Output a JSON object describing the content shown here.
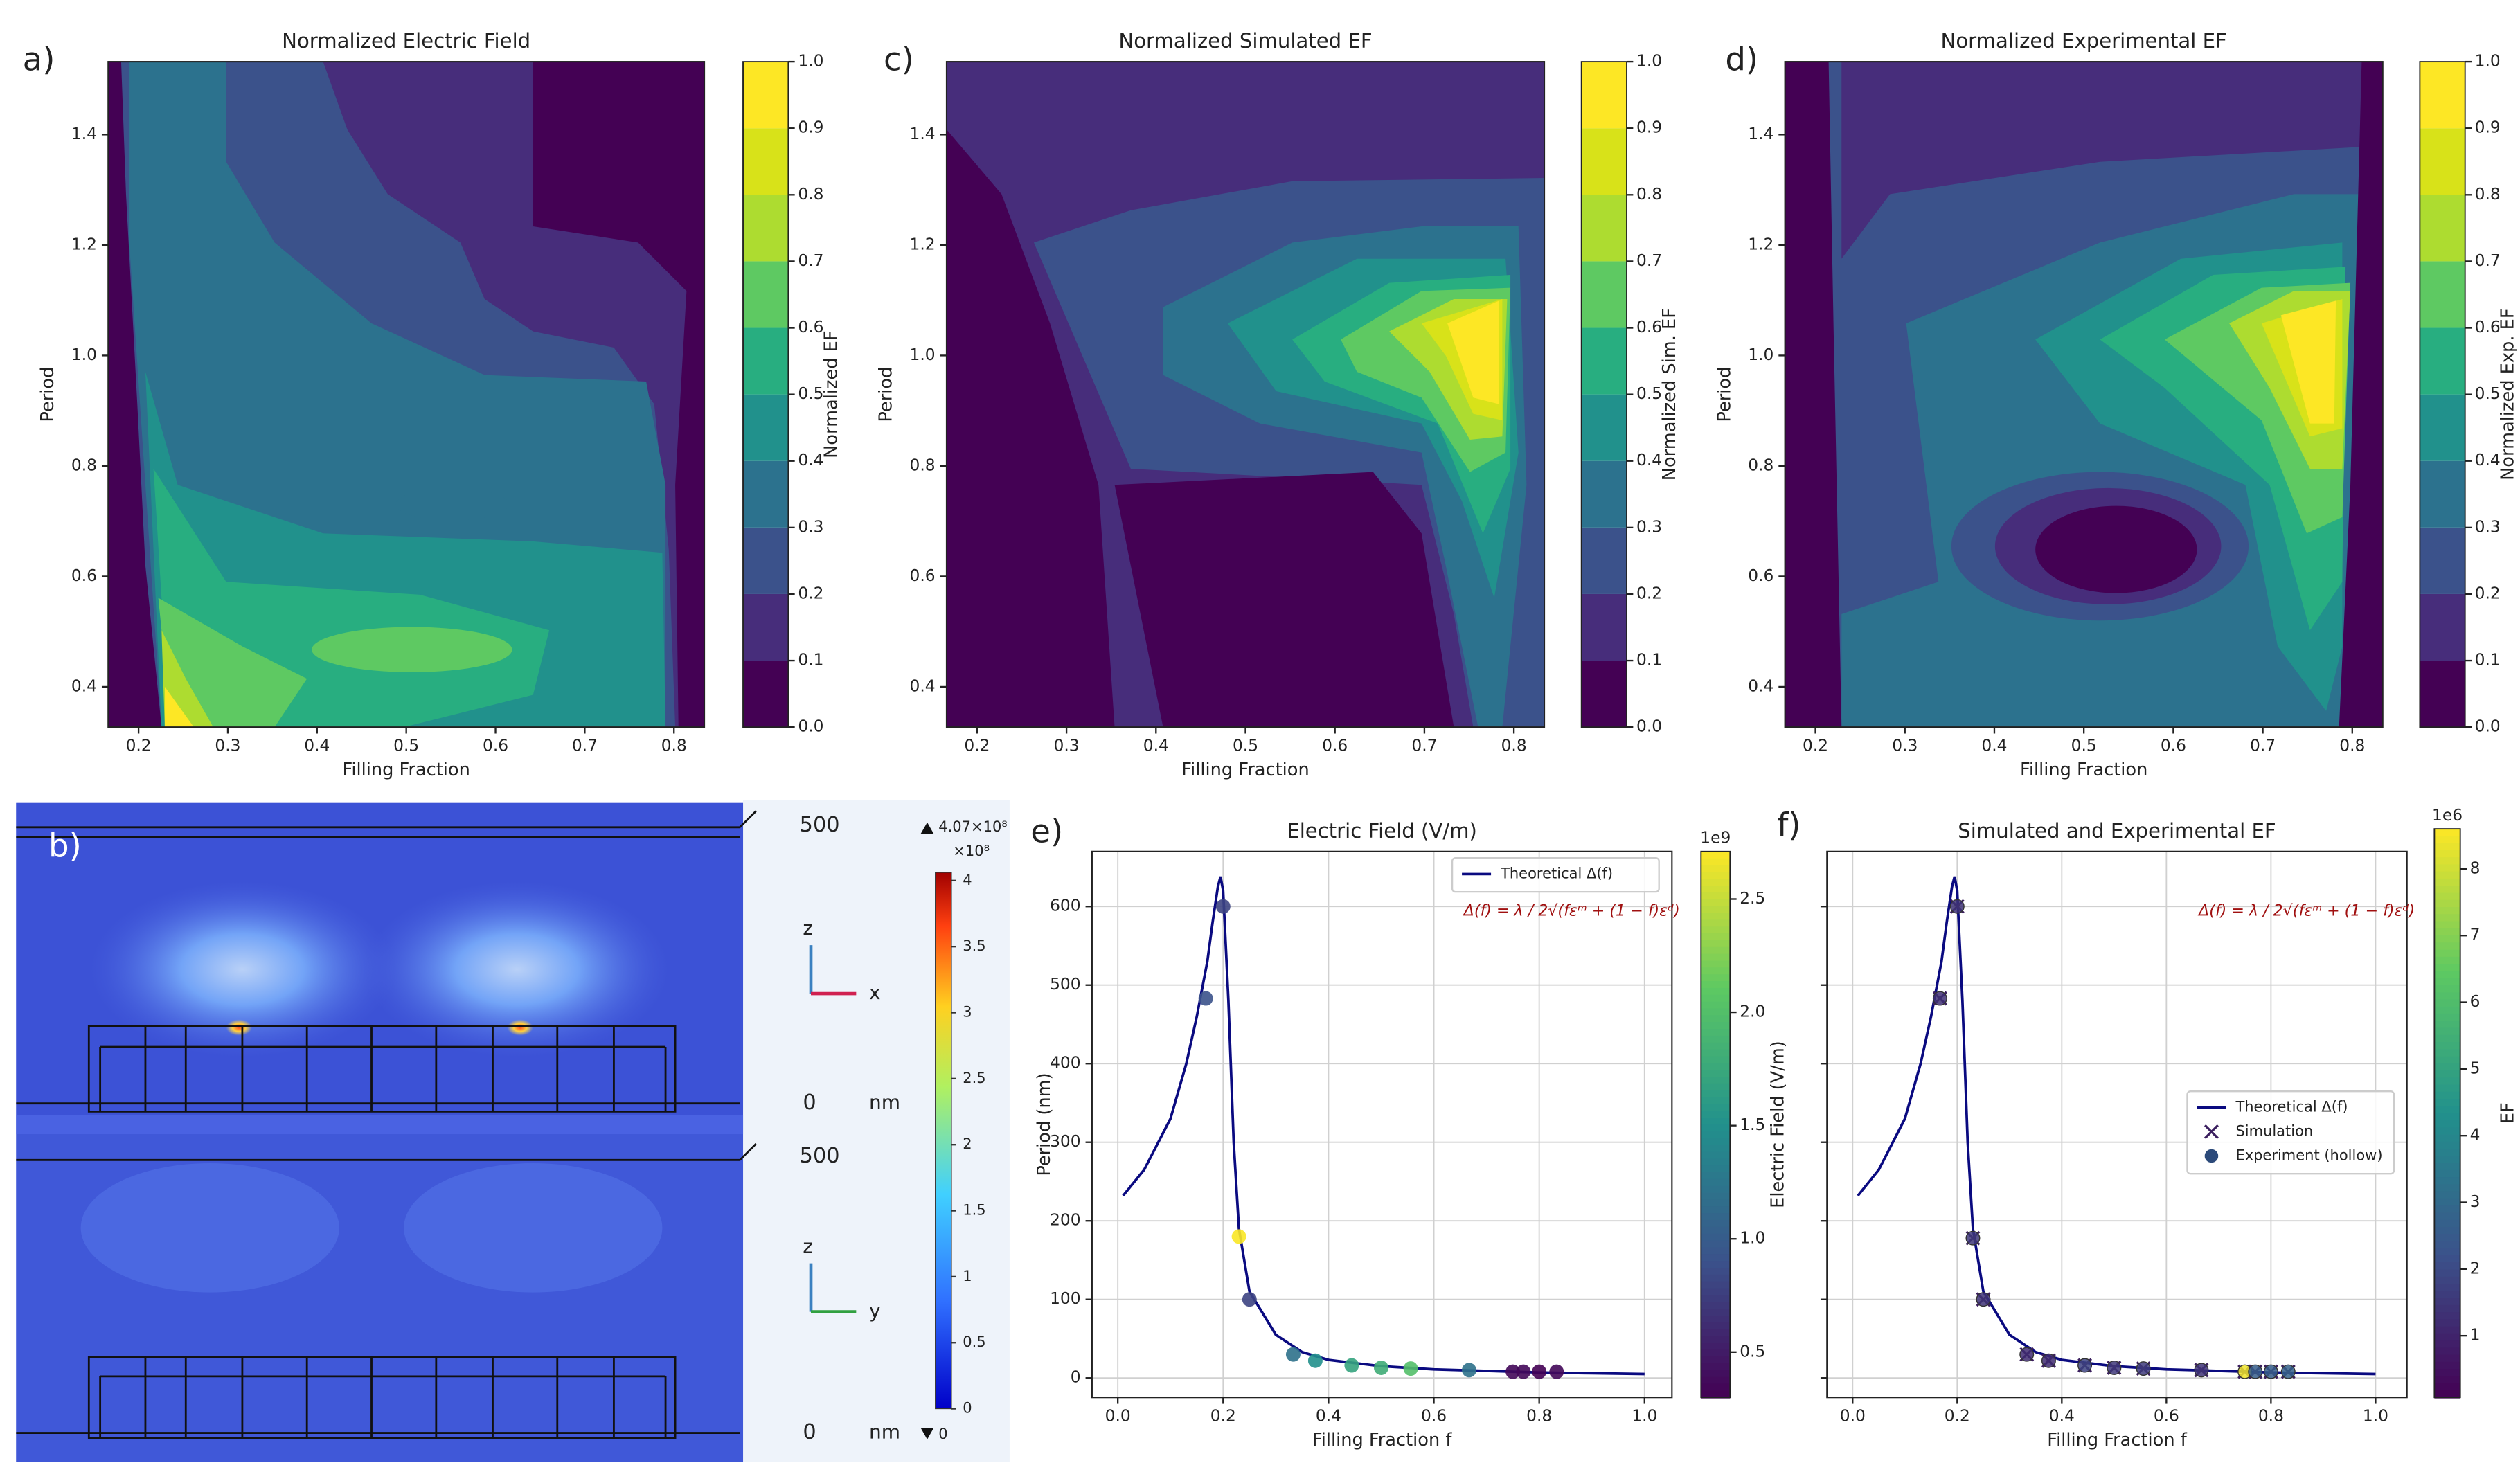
{
  "chart_data": [
    {
      "type": "contour",
      "panel_label": "a)",
      "title": "Normalized Electric Field",
      "x_label": "Filling Fraction",
      "y_label": "Period",
      "colorbar_label": "Normalized EF",
      "xlim": [
        0.166,
        0.834
      ],
      "ylim": [
        0.327,
        1.532
      ],
      "xticks": [
        0.2,
        0.3,
        0.4,
        0.5,
        0.6,
        0.7,
        0.8
      ],
      "yticks": [
        0.4,
        0.6,
        0.8,
        {
          "value": 1,
          "label": "1.0"
        },
        1.2,
        1.4
      ],
      "clim": [
        0,
        1
      ],
      "cticks": [
        {
          "value": 0,
          "label": "0.0"
        },
        0.1,
        0.2,
        0.3,
        0.4,
        0.5,
        0.6,
        0.7,
        0.8,
        0.9,
        {
          "value": 1,
          "label": "1.0"
        }
      ],
      "colormap": "viridis"
    },
    {
      "type": "contour",
      "panel_label": "c)",
      "title": "Normalized Simulated EF",
      "x_label": "Filling Fraction",
      "y_label": "Period",
      "colorbar_label": "Normalized Sim. EF",
      "xlim": [
        0.166,
        0.834
      ],
      "ylim": [
        0.327,
        1.532
      ],
      "xticks": [
        0.2,
        0.3,
        0.4,
        0.5,
        0.6,
        0.7,
        0.8
      ],
      "yticks": [
        0.4,
        0.6,
        0.8,
        {
          "value": 1,
          "label": "1.0"
        },
        1.2,
        1.4
      ],
      "clim": [
        0,
        1
      ],
      "cticks": [
        {
          "value": 0,
          "label": "0.0"
        },
        0.1,
        0.2,
        0.3,
        0.4,
        0.5,
        0.6,
        0.7,
        0.8,
        0.9,
        {
          "value": 1,
          "label": "1.0"
        }
      ],
      "colormap": "viridis"
    },
    {
      "type": "contour",
      "panel_label": "d)",
      "title": "Normalized Experimental EF",
      "x_label": "Filling Fraction",
      "y_label": "Period",
      "colorbar_label": "Normalized Exp. EF",
      "xlim": [
        0.166,
        0.834
      ],
      "ylim": [
        0.327,
        1.532
      ],
      "xticks": [
        0.2,
        0.3,
        0.4,
        0.5,
        0.6,
        0.7,
        0.8
      ],
      "yticks": [
        0.4,
        0.6,
        0.8,
        {
          "value": 1,
          "label": "1.0"
        },
        1.2,
        1.4
      ],
      "clim": [
        0,
        1
      ],
      "cticks": [
        {
          "value": 0,
          "label": "0.0"
        },
        0.1,
        0.2,
        0.3,
        0.4,
        0.5,
        0.6,
        0.7,
        0.8,
        0.9,
        {
          "value": 1,
          "label": "1.0"
        }
      ],
      "colormap": "viridis"
    },
    {
      "type": "line_scatter",
      "panel_label": "e)",
      "title": "Electric Field (V/m)",
      "x_label": "Filling Fraction f",
      "y_label": "Period (nm)",
      "colorbar_label": "Electric Field (V/m)",
      "colorbar_scale_label": "1e9",
      "annotation": "Δ(f) = λ / 2√(fεᵐ + (1 − f)εᵈ)",
      "annotation_color": "#a01010",
      "grid": true,
      "legend_position": "upper right",
      "colormap": "viridis",
      "xlim": [
        -0.049,
        1.052
      ],
      "ylim": [
        -24.7,
        670
      ],
      "xticks": [
        {
          "value": 0,
          "label": "0.0"
        },
        0.2,
        0.4,
        0.6,
        0.8,
        {
          "value": 1,
          "label": "1.0"
        }
      ],
      "yticks": [
        0,
        100,
        200,
        300,
        400,
        500,
        600
      ],
      "clim": [
        0.3,
        2.71
      ],
      "cticks": [
        0.5,
        {
          "value": 1,
          "label": "1.0"
        },
        1.5,
        {
          "value": 2,
          "label": "2.0"
        },
        2.5
      ],
      "series": [
        {
          "name": "Theoretical Δ(f)",
          "kind": "line",
          "color": "#0a0a80",
          "x": [
            0.01,
            0.05,
            0.1,
            0.13,
            0.15,
            0.17,
            0.18,
            0.19,
            0.195,
            0.2,
            0.21,
            0.22,
            0.23,
            0.25,
            0.3,
            0.35,
            0.4,
            0.5,
            0.6,
            0.7,
            0.8,
            0.9,
            1.0
          ],
          "values": [
            232,
            265,
            330,
            400,
            460,
            530,
            580,
            625,
            638,
            620,
            480,
            300,
            190,
            110,
            55,
            33,
            23,
            15,
            11,
            9,
            7,
            6,
            5
          ]
        }
      ],
      "points": {
        "x": [
          0.167,
          0.2,
          0.23,
          0.25,
          0.333,
          0.375,
          0.444,
          0.5,
          0.556,
          0.667,
          0.75,
          0.77,
          0.8,
          0.833
        ],
        "values": [
          483,
          600,
          180,
          100,
          30,
          22,
          16,
          13,
          12,
          10,
          8,
          8,
          8,
          8
        ],
        "color_values": [
          0.9,
          0.8,
          2.7,
          0.8,
          1.2,
          1.5,
          1.7,
          1.8,
          2.0,
          1.2,
          0.35,
          0.35,
          0.3,
          0.35
        ]
      }
    },
    {
      "type": "line_scatter",
      "panel_label": "f)",
      "title": "Simulated and Experimental EF",
      "x_label": "Filling Fraction f",
      "colorbar_label": "EF",
      "colorbar_scale_label": "1e6",
      "annotation": "Δ(f) = λ / 2√(fεᵐ + (1 − f)εᵈ)",
      "annotation_color": "#a01010",
      "grid": true,
      "show_ytick_labels": false,
      "legend_position": "center right",
      "colormap": "viridis",
      "xlim": [
        -0.049,
        1.06
      ],
      "ylim": [
        -24.7,
        670
      ],
      "xticks": [
        {
          "value": 0,
          "label": "0.0"
        },
        0.2,
        0.4,
        0.6,
        0.8,
        {
          "value": 1,
          "label": "1.0"
        }
      ],
      "yticks": [
        0,
        100,
        200,
        300,
        400,
        500,
        600
      ],
      "clim": [
        0.075,
        8.6
      ],
      "cticks": [
        1,
        2,
        3,
        4,
        5,
        6,
        7,
        8
      ],
      "series": [
        {
          "name": "Theoretical Δ(f)",
          "kind": "line",
          "color": "#0a0a80",
          "x": [
            0.01,
            0.05,
            0.1,
            0.13,
            0.15,
            0.17,
            0.18,
            0.19,
            0.195,
            0.2,
            0.21,
            0.22,
            0.23,
            0.25,
            0.3,
            0.35,
            0.4,
            0.5,
            0.6,
            0.7,
            0.8,
            0.9,
            1.0
          ],
          "values": [
            232,
            265,
            330,
            400,
            460,
            530,
            580,
            625,
            638,
            620,
            480,
            300,
            190,
            110,
            55,
            33,
            23,
            15,
            11,
            9,
            7,
            6,
            5
          ]
        },
        {
          "name": "Simulation",
          "kind": "cross",
          "color": "#3b1f5f",
          "x": [
            0.167,
            0.2,
            0.23,
            0.25,
            0.333,
            0.375,
            0.444,
            0.5,
            0.556,
            0.667,
            0.75,
            0.77,
            0.8,
            0.833
          ],
          "values": [
            483,
            600,
            178,
            100,
            30,
            22,
            16,
            13,
            12,
            10,
            8,
            8,
            8,
            8
          ]
        },
        {
          "name": "Experiment (hollow)",
          "kind": "circle",
          "color": "#2c4a7a",
          "x": [
            0.167,
            0.2,
            0.23,
            0.25,
            0.333,
            0.375,
            0.444,
            0.5,
            0.556,
            0.667,
            0.75,
            0.77,
            0.8,
            0.833
          ],
          "values": [
            483,
            600,
            178,
            100,
            30,
            22,
            16,
            13,
            12,
            10,
            8,
            8,
            8,
            8
          ],
          "color_values": [
            1.3,
            1.4,
            1.5,
            1.4,
            1.2,
            1.2,
            1.8,
            1.5,
            1.6,
            1.4,
            8.4,
            2.6,
            2.6,
            2.7
          ]
        }
      ]
    }
  ],
  "simulation_panel": {
    "panel_label": "b)",
    "views": [
      {
        "top_label": "500",
        "bottom_label": "0",
        "unit": "nm",
        "axis_up": "z",
        "axis_right": "x"
      },
      {
        "top_label": "500",
        "bottom_label": "0",
        "unit": "nm",
        "axis_up": "z",
        "axis_right": "y"
      }
    ],
    "colorbar": {
      "max_label": "4.07×10⁸",
      "scale_label": "×10⁸",
      "min_label": "0",
      "clim": [
        0,
        4.07
      ],
      "ticks": [
        0,
        0.5,
        1,
        1.5,
        2,
        2.5,
        3,
        3.5,
        4
      ]
    }
  }
}
